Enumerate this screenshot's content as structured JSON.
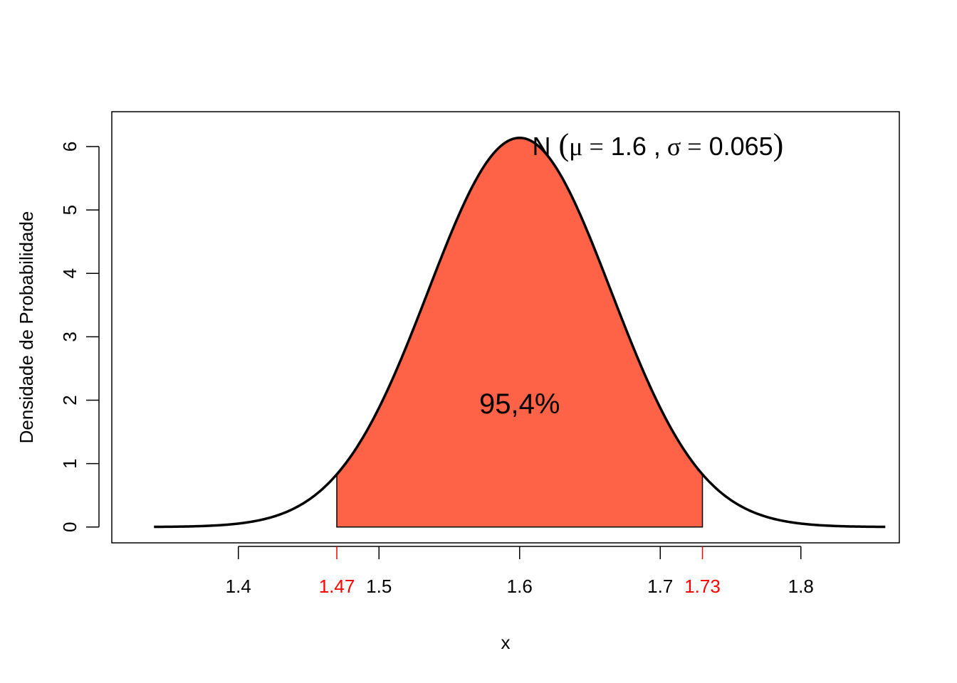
{
  "chart_data": {
    "type": "area",
    "title": "",
    "xlabel": "x",
    "ylabel": "Densidade de Probabilidade",
    "distribution": {
      "name": "N",
      "mean": 1.6,
      "sd": 0.065
    },
    "xlim": [
      1.31,
      1.87
    ],
    "ylim": [
      -0.25,
      6.55
    ],
    "curve_x_range": [
      1.34,
      1.86
    ],
    "x_ticks": [
      "1.4",
      "1.5",
      "1.6",
      "1.7",
      "1.8"
    ],
    "y_ticks": [
      "0",
      "1",
      "2",
      "3",
      "4",
      "5",
      "6"
    ],
    "highlight_ticks": [
      "1.47",
      "1.73"
    ],
    "shaded_interval": [
      1.47,
      1.73
    ],
    "shaded_label": "95,4%",
    "shaded_label_pos": {
      "x": 1.6,
      "y": 1.95
    },
    "legend_annotation": {
      "parts": [
        "N",
        "(",
        "μ",
        "=",
        "1.6",
        ",",
        "σ",
        "=",
        "0.065",
        ")"
      ],
      "pos": {
        "x": 1.609,
        "y": 6.0
      }
    },
    "grid": false,
    "colors": {
      "fill": "#FF6347",
      "curve": "#000000",
      "highlight": "#FF0000",
      "axis": "#000000"
    }
  }
}
